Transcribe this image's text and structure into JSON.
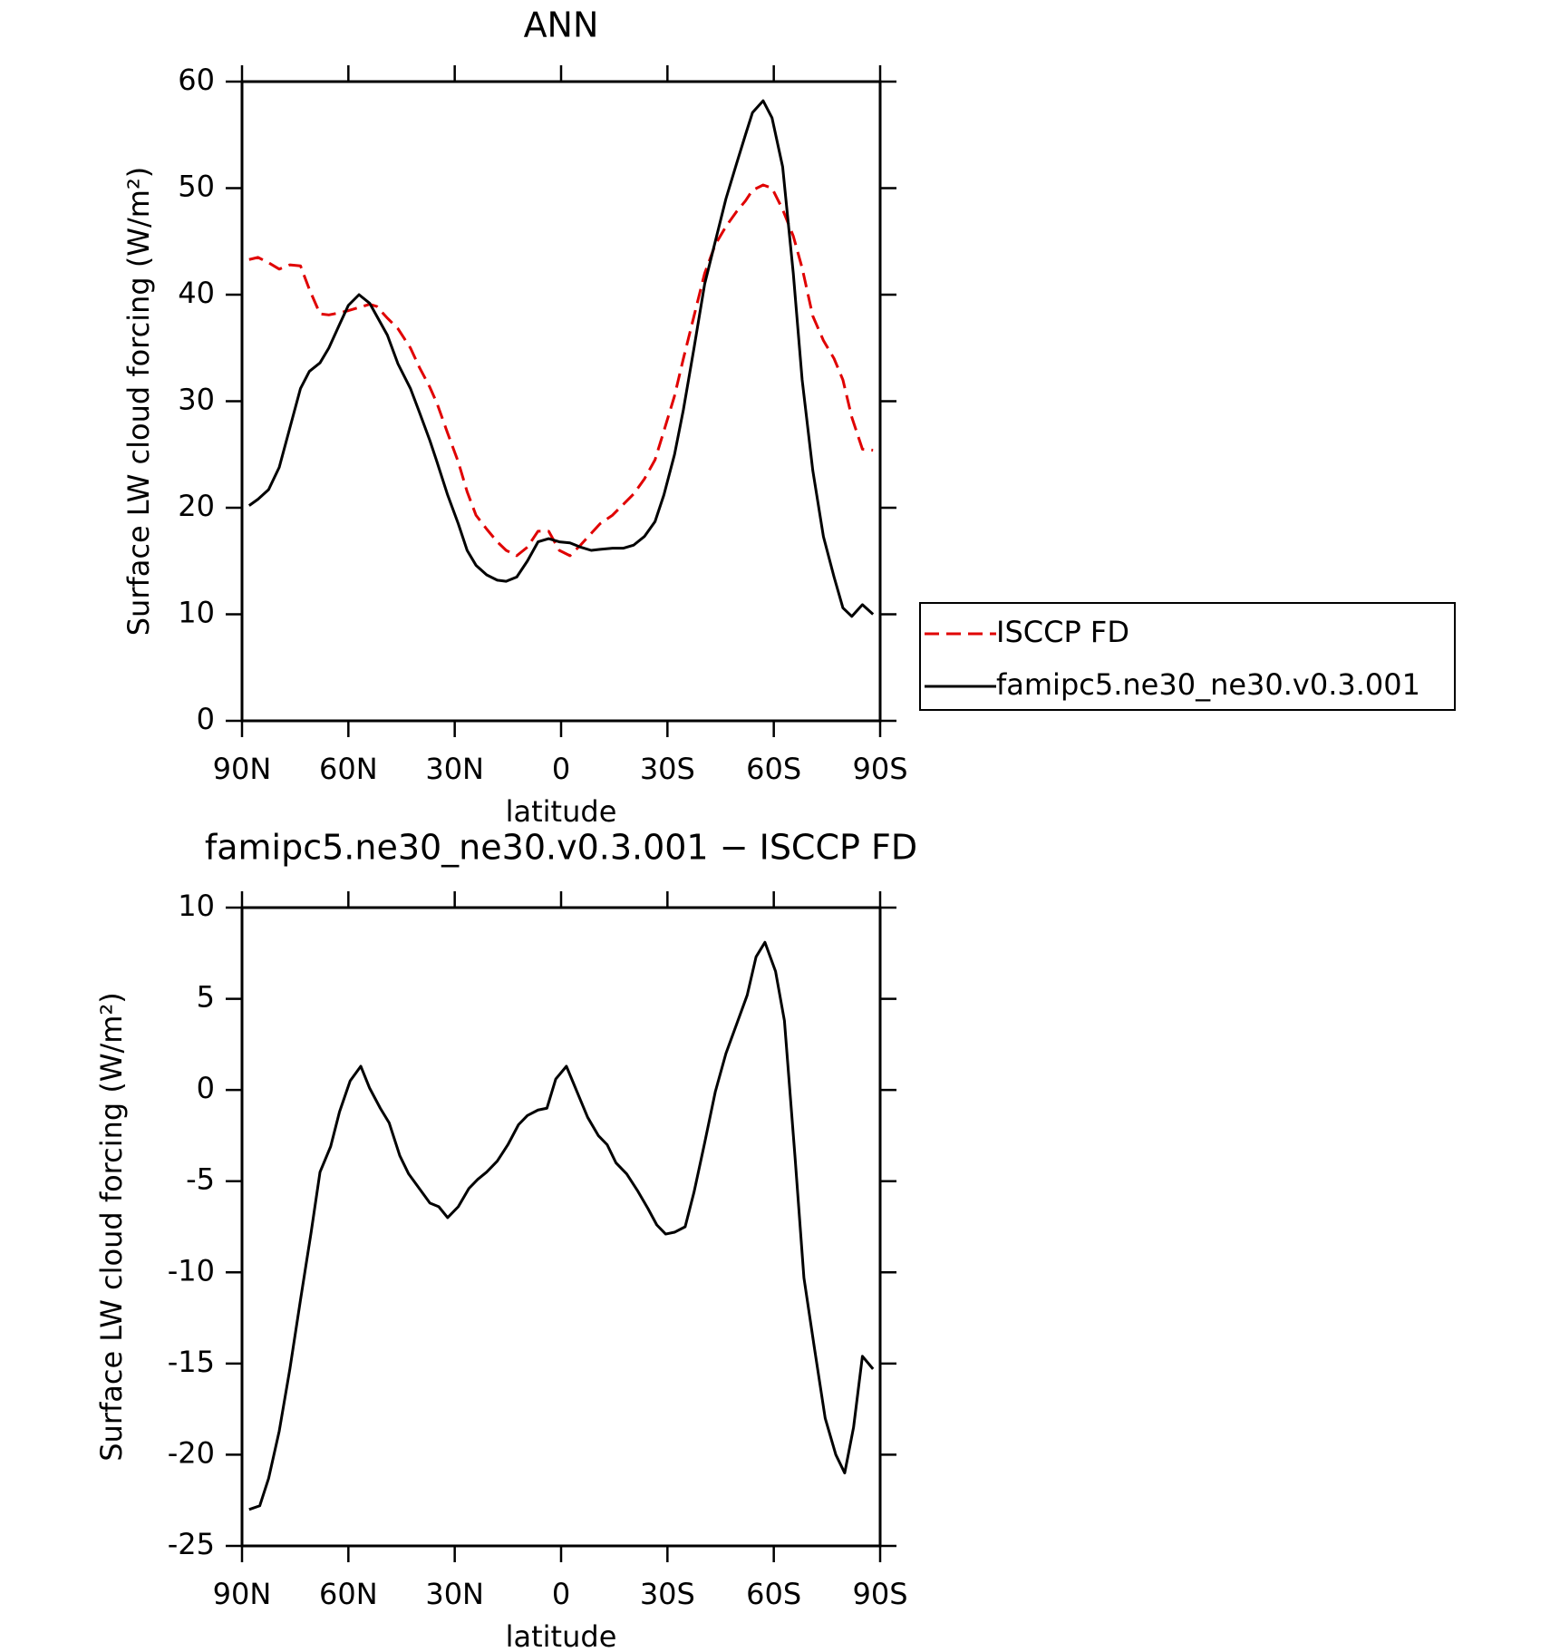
{
  "chart_data": [
    {
      "type": "line",
      "title": "ANN",
      "xlabel": "latitude",
      "ylabel": "Surface LW cloud forcing (W/m²)",
      "x": [
        88,
        85.5,
        82.5,
        79.5,
        76.5,
        73.5,
        71,
        68,
        65.5,
        62.5,
        60,
        57,
        54,
        52,
        49,
        46,
        42.5,
        40,
        37,
        35,
        32,
        29,
        26.5,
        24,
        21,
        18,
        15.5,
        12.5,
        9.5,
        6.5,
        3.5,
        0.5,
        -2.5,
        -5.5,
        -8.5,
        -11,
        -14.5,
        -17.5,
        -20.5,
        -23.5,
        -26.5,
        -29,
        -32,
        -34.5,
        -37.5,
        -40.5,
        -43.5,
        -46.5,
        -49.5,
        -52,
        -54,
        -57,
        -59.5,
        -62.5,
        -65.5,
        -68,
        -71,
        -74,
        -77,
        -79.5,
        -82,
        -85,
        -88
      ],
      "series": [
        {
          "name": "ISCCP FD",
          "color": "#e00000",
          "style": "dashed",
          "values": [
            43.3,
            43.5,
            43,
            42.4,
            42.8,
            42.7,
            40.5,
            38.2,
            38.1,
            38.3,
            38.5,
            38.8,
            39.1,
            38.9,
            37.8,
            36.8,
            35,
            33.2,
            31.3,
            29.8,
            27,
            24.3,
            21.5,
            19.3,
            18,
            16.8,
            16,
            15.5,
            16.3,
            17.8,
            17.8,
            16,
            15.5,
            16.5,
            17.6,
            18.5,
            19.3,
            20.3,
            21.3,
            22.7,
            24.5,
            27.2,
            30.5,
            34,
            38,
            42,
            44.7,
            46.4,
            47.8,
            48.8,
            49.8,
            50.3,
            50,
            48,
            45.5,
            42.5,
            38,
            35.7,
            34,
            32,
            28.5,
            25.5,
            25.4
          ]
        },
        {
          "name": "famipc5.ne30_ne30.v0.3.001",
          "color": "#000000",
          "style": "solid",
          "values": [
            20.2,
            20.8,
            21.7,
            23.8,
            27.5,
            31.2,
            32.8,
            33.6,
            35,
            37.2,
            39,
            40,
            39.2,
            38,
            36.2,
            33.5,
            31.2,
            29,
            26.3,
            24.3,
            21.2,
            18.5,
            16,
            14.6,
            13.7,
            13.2,
            13.1,
            13.5,
            15,
            16.8,
            17.1,
            16.8,
            16.7,
            16.3,
            16.0,
            16.1,
            16.2,
            16.2,
            16.5,
            17.3,
            18.7,
            21.2,
            25,
            29.2,
            35,
            41,
            45,
            49,
            52.3,
            55,
            57.1,
            58.2,
            56.6,
            52,
            42,
            32,
            23.5,
            17.3,
            13.5,
            10.6,
            9.8,
            10.9,
            10
          ]
        }
      ],
      "xlim": [
        90,
        -90
      ],
      "xticks": [
        {
          "value": 90,
          "label": "90N"
        },
        {
          "value": 60,
          "label": "60N"
        },
        {
          "value": 30,
          "label": "30N"
        },
        0,
        {
          "value": -30,
          "label": "30S"
        },
        {
          "value": -60,
          "label": "60S"
        },
        {
          "value": -90,
          "label": "90S"
        }
      ],
      "ylim": [
        0,
        60
      ],
      "yticks": [
        0,
        10,
        20,
        30,
        40,
        50,
        60
      ],
      "legend": "right"
    },
    {
      "type": "line",
      "title": "famipc5.ne30_ne30.v0.3.001 − ISCCP FD",
      "xlabel": "latitude",
      "ylabel": "Surface LW cloud forcing (W/m²)",
      "x": [
        88,
        85,
        82.5,
        79.5,
        76.5,
        73.5,
        70.5,
        68,
        65,
        62.5,
        59.5,
        56.5,
        54,
        51,
        48.5,
        45.5,
        43,
        40,
        37,
        34.5,
        32,
        29,
        26,
        23.5,
        21,
        18,
        15,
        12,
        9.5,
        6.5,
        4,
        1.5,
        -1.5,
        -4.5,
        -7.5,
        -10.5,
        -13,
        -15.5,
        -18.5,
        -21.5,
        -24.5,
        -27,
        -29.5,
        -32,
        -35,
        -37.5,
        -40.5,
        -43.5,
        -46.5,
        -49.5,
        -52.5,
        -55,
        -57.5,
        -60.5,
        -63,
        -66,
        -68.5,
        -71.5,
        -74.5,
        -77.5,
        -80,
        -82.5,
        -85,
        -88
      ],
      "series": [
        {
          "color": "#000000",
          "style": "solid",
          "values": [
            -23,
            -22.8,
            -21.3,
            -18.7,
            -15.3,
            -11.5,
            -7.8,
            -4.5,
            -3.1,
            -1.2,
            0.5,
            1.3,
            0.1,
            -1,
            -1.8,
            -3.6,
            -4.6,
            -5.4,
            -6.2,
            -6.4,
            -7,
            -6.4,
            -5.4,
            -4.9,
            -4.5,
            -3.9,
            -3,
            -1.9,
            -1.4,
            -1.1,
            -1,
            0.6,
            1.3,
            -0.1,
            -1.5,
            -2.5,
            -3,
            -4,
            -4.6,
            -5.5,
            -6.5,
            -7.4,
            -7.9,
            -7.8,
            -7.5,
            -5.6,
            -2.9,
            -0.1,
            2,
            3.6,
            5.2,
            7.3,
            8.1,
            6.5,
            3.8,
            -3.7,
            -10.3,
            -14.2,
            -18,
            -20,
            -21,
            -18.5,
            -14.6,
            -15.3
          ]
        }
      ],
      "xlim": [
        90,
        -90
      ],
      "xticks": [
        {
          "value": 90,
          "label": "90N"
        },
        {
          "value": 60,
          "label": "60N"
        },
        {
          "value": 30,
          "label": "30N"
        },
        0,
        {
          "value": -30,
          "label": "30S"
        },
        {
          "value": -60,
          "label": "60S"
        },
        {
          "value": -90,
          "label": "90S"
        }
      ],
      "ylim": [
        -25,
        10
      ],
      "yticks": [
        -25,
        -20,
        -15,
        -10,
        -5,
        0,
        5,
        10
      ]
    }
  ]
}
